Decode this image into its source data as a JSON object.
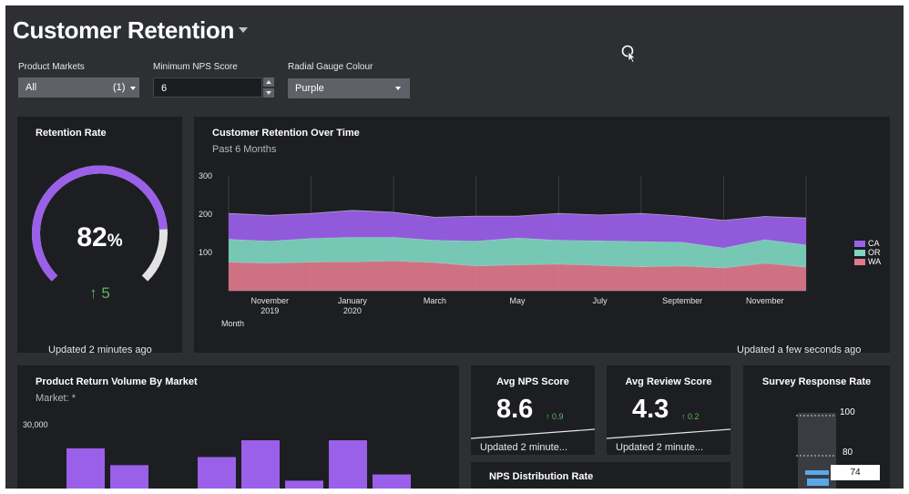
{
  "header": {
    "title": "Customer Retention"
  },
  "filters": {
    "product_markets": {
      "label": "Product Markets",
      "value": "All",
      "count": "(1)"
    },
    "min_nps": {
      "label": "Minimum NPS Score",
      "value": "6"
    },
    "gauge_colour": {
      "label": "Radial Gauge Colour",
      "value": "Purple"
    }
  },
  "retention_rate": {
    "title": "Retention Rate",
    "value": "82",
    "unit": "%",
    "delta": "5",
    "updated": "Updated 2 minutes ago",
    "gauge_fraction": 0.82
  },
  "retention_over_time": {
    "title": "Customer Retention Over Time",
    "subtitle": "Past 6 Months",
    "updated": "Updated a few seconds ago"
  },
  "product_return": {
    "title": "Product Return Volume By Market",
    "subtitle": "Market: *"
  },
  "avg_nps": {
    "title": "Avg NPS Score",
    "value": "8.6",
    "delta": "0.9",
    "updated": "Updated 2 minute..."
  },
  "avg_review": {
    "title": "Avg Review Score",
    "value": "4.3",
    "delta": "0.2",
    "updated": "Updated 2 minute..."
  },
  "survey": {
    "title": "Survey Response Rate",
    "tick_high": "100",
    "tick_low": "80",
    "value_label": "74"
  },
  "nps_distribution": {
    "title": "NPS Distribution Rate"
  },
  "colors": {
    "accent": "#9a60ea",
    "positive": "#5cb85c",
    "teal": "#7fd6c2",
    "pink": "#dd7a8c"
  },
  "chart_data": [
    {
      "type": "area",
      "title": "Customer Retention Over Time",
      "subtitle": "Past 6 Months",
      "xlabel": "Month",
      "ylabel": "",
      "ylim": [
        0,
        300
      ],
      "yticks": [
        "100",
        "200",
        "300"
      ],
      "xtick_labels": [
        {
          "line1": "November",
          "line2": "2019",
          "pos": 1
        },
        {
          "line1": "January",
          "line2": "2020",
          "pos": 3
        },
        {
          "line1": "March",
          "line2": "",
          "pos": 5
        },
        {
          "line1": "May",
          "line2": "",
          "pos": 7
        },
        {
          "line1": "July",
          "line2": "",
          "pos": 9
        },
        {
          "line1": "September",
          "line2": "",
          "pos": 11
        },
        {
          "line1": "November",
          "line2": "",
          "pos": 13
        }
      ],
      "stacked": true,
      "x": [
        0,
        1,
        2,
        3,
        4,
        5,
        6,
        7,
        8,
        9,
        10,
        11,
        12,
        13,
        14
      ],
      "series": [
        {
          "name": "WA",
          "color": "#dd7a8c",
          "values": [
            75,
            72,
            75,
            76,
            78,
            74,
            65,
            68,
            70,
            66,
            63,
            65,
            60,
            72,
            62
          ]
        },
        {
          "name": "OR",
          "color": "#7fd6c2",
          "values": [
            60,
            58,
            62,
            64,
            62,
            58,
            65,
            70,
            62,
            65,
            66,
            62,
            52,
            62,
            58
          ]
        },
        {
          "name": "CA",
          "color": "#9a60ea",
          "values": [
            67,
            67,
            65,
            70,
            65,
            60,
            65,
            57,
            70,
            67,
            73,
            68,
            72,
            60,
            70
          ]
        }
      ],
      "legend": [
        "CA",
        "OR",
        "WA"
      ],
      "legend_position": "right"
    },
    {
      "type": "bar",
      "title": "Product Return Volume By Market",
      "subtitle": "Market: *",
      "yticks": [
        "30,000"
      ],
      "y_visible_min": 19000,
      "ylim": [
        0,
        30000
      ],
      "values": [
        26200,
        23500,
        0,
        24800,
        27500,
        21000,
        27500,
        22000
      ],
      "color": "#9a60ea"
    }
  ]
}
